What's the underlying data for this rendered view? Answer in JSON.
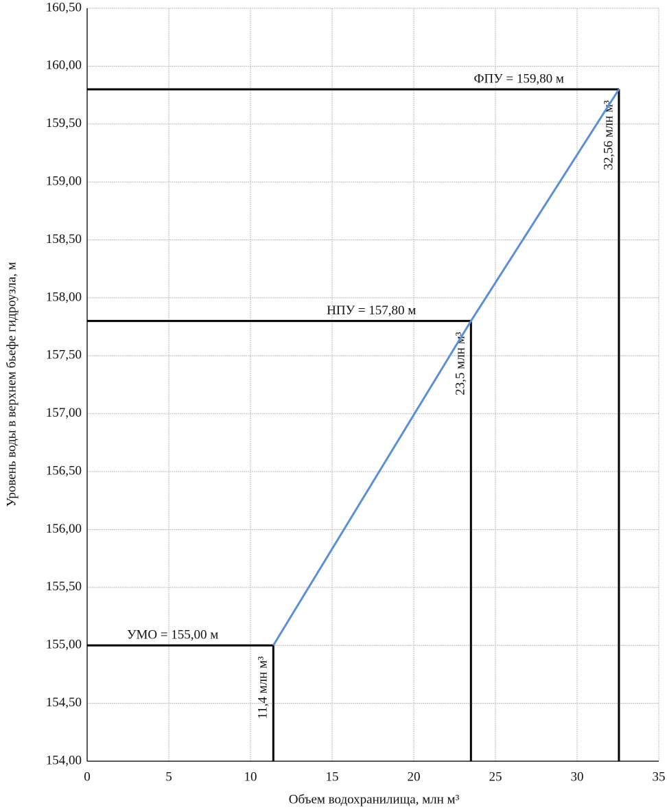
{
  "chart_data": {
    "type": "line",
    "x_label": "Объем водохранилища, млн м³",
    "y_label": "Уровень воды в верхнем бьефе гидроузла, м",
    "x": [
      11.4,
      23.5,
      32.56
    ],
    "series": [
      {
        "color": "#5b8fd9",
        "values": [
          155,
          157.8,
          159.8
        ]
      }
    ],
    "levels": [
      {
        "label": "УМО = 155,00 м",
        "level": 155,
        "volume": 11.4,
        "volume_label": "11,4 млн м³"
      },
      {
        "label": "НПУ = 157,80 м",
        "level": 157.8,
        "volume": 23.5,
        "volume_label": "23,5 млн м³"
      },
      {
        "label": "ФПУ = 159,80 м",
        "level": 159.8,
        "volume": 32.56,
        "volume_label": "32,56 млн м³"
      }
    ],
    "xlim": [
      0,
      35
    ],
    "xticks": [
      0,
      5,
      10,
      15,
      20,
      25,
      30,
      35
    ],
    "ylim": [
      154,
      160.5
    ],
    "yticks": [
      {
        "value": 154,
        "label": "154,00"
      },
      {
        "value": 154.5,
        "label": "154,50"
      },
      {
        "value": 155,
        "label": "155,00"
      },
      {
        "value": 155.5,
        "label": "155,50"
      },
      {
        "value": 156,
        "label": "156,00"
      },
      {
        "value": 156.5,
        "label": "156,50"
      },
      {
        "value": 157,
        "label": "157,00"
      },
      {
        "value": 157.5,
        "label": "157,50"
      },
      {
        "value": 158,
        "label": "158,00"
      },
      {
        "value": 158.5,
        "label": "158,50"
      },
      {
        "value": 159,
        "label": "159,00"
      },
      {
        "value": 159.5,
        "label": "159,50"
      },
      {
        "value": 160,
        "label": "160,00"
      },
      {
        "value": 160.5,
        "label": "160,50"
      }
    ],
    "grid": true
  }
}
